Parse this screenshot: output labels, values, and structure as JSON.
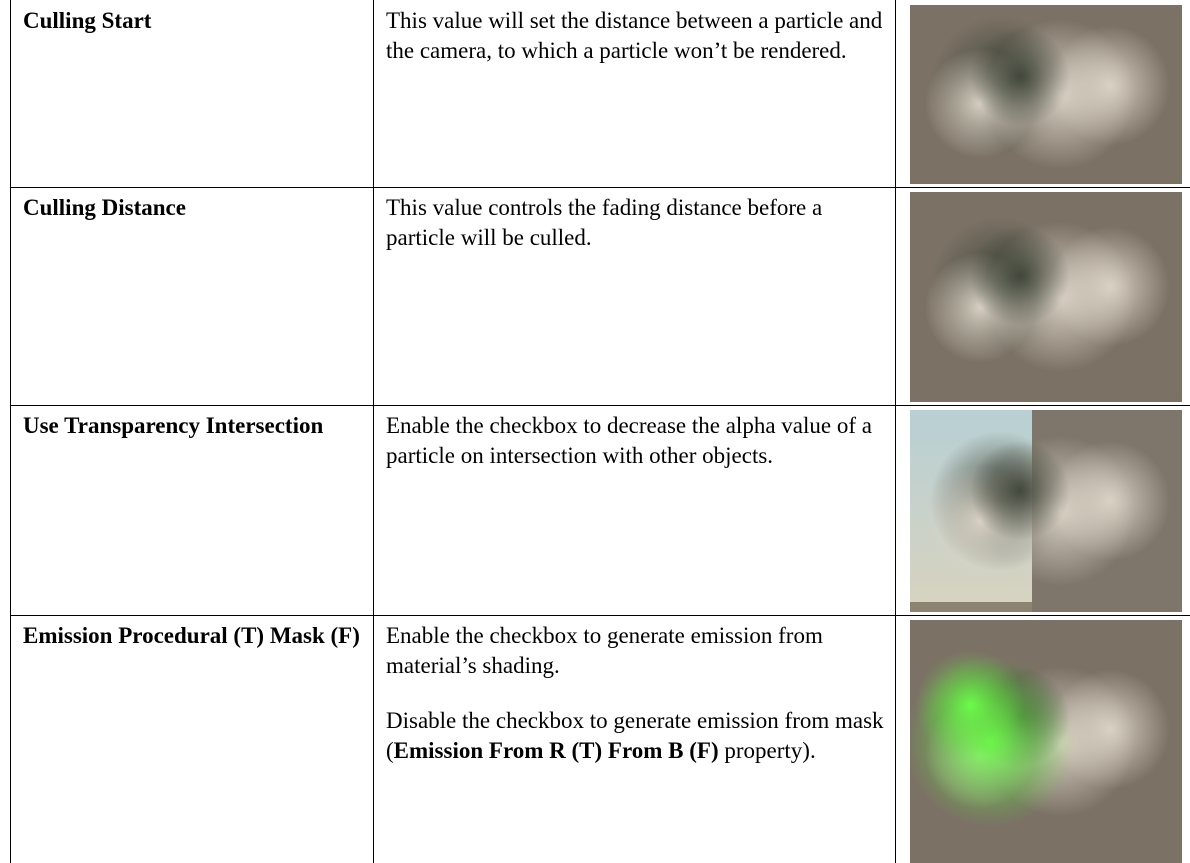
{
  "table": {
    "rows": [
      {
        "name": [
          {
            "text": "Culling Start",
            "bold": true
          }
        ],
        "description": [
          [
            {
              "text": "This value will set the distance between a particle and the camera, to which a particle won’t be rendered.",
              "bold": false
            }
          ]
        ]
      },
      {
        "name": [
          {
            "text": "Culling Distance",
            "bold": true
          }
        ],
        "description": [
          [
            {
              "text": "This value controls the fading distance before a particle will be culled.",
              "bold": false
            }
          ]
        ]
      },
      {
        "name": [
          {
            "text": "Use Transparency Intersection",
            "bold": true
          }
        ],
        "description": [
          [
            {
              "text": "Enable the checkbox to decrease the alpha value of a particle on intersection with other objects.",
              "bold": false
            }
          ]
        ]
      },
      {
        "name": [
          {
            "text": "Emission Procedural (T) Mask (F)",
            "bold": true
          }
        ],
        "description": [
          [
            {
              "text": "Enable the checkbox to generate emission from material’s shading.",
              "bold": false
            }
          ],
          [
            {
              "text": "Disable the checkbox to generate emission from mask (",
              "bold": false
            },
            {
              "text": "Emission From R (T) From B (F)",
              "bold": true
            },
            {
              "text": " property).",
              "bold": false
            }
          ]
        ]
      }
    ]
  }
}
